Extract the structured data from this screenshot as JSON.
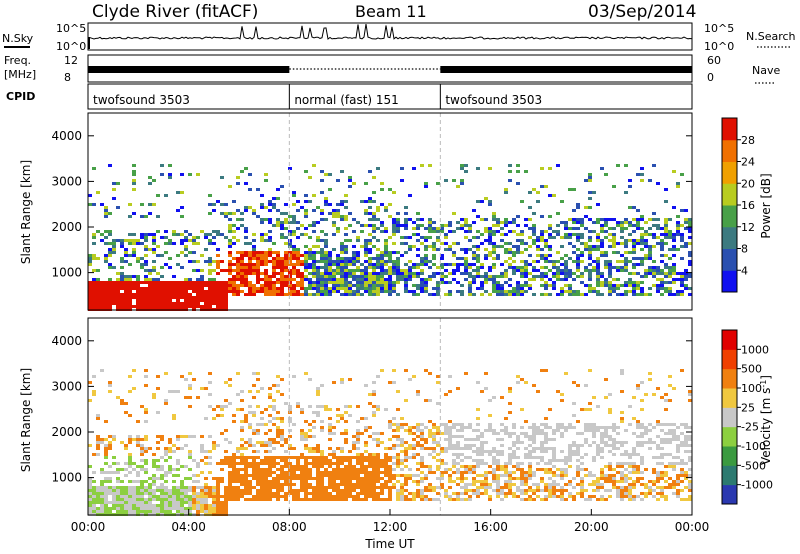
{
  "header": {
    "station": "Clyde River (fitACF)",
    "beam": "Beam 11",
    "date": "03/Sep/2014"
  },
  "top_panels": {
    "nsky_label": "N.Sky",
    "nsky_ticks": [
      "10^5",
      "10^0"
    ],
    "nsearch_label": "N.Search",
    "nsearch_ticks": [
      "10^5",
      "10^0"
    ],
    "freq_label": "Freq.",
    "freq_unit": "[MHz]",
    "freq_ticks": [
      "12",
      "8"
    ],
    "nave_label": "Nave",
    "nave_ticks": [
      "60",
      "0"
    ],
    "cpid_label": "CPID",
    "cpid_segments": [
      {
        "name": "twofsound",
        "id": "3503",
        "start_h": 0,
        "end_h": 8
      },
      {
        "name": "normal (fast)",
        "id": "151",
        "start_h": 8,
        "end_h": 14
      },
      {
        "name": "twofsound",
        "id": "3503",
        "start_h": 14,
        "end_h": 24
      }
    ]
  },
  "chart_data": [
    {
      "type": "heatmap",
      "panel": "power",
      "ylabel": "Slant Range [km]",
      "ylim": [
        180,
        4500
      ],
      "yticks": [
        "4000",
        "3000",
        "2000",
        "1000"
      ],
      "xlim_hours": [
        0,
        24
      ],
      "colorbar_label": "Power [dB]",
      "colorbar_ticks": [
        "28",
        "24",
        "20",
        "16",
        "12",
        "8",
        "4"
      ],
      "colorbar_colors": [
        "#1010f0",
        "#2a50b0",
        "#3c7a80",
        "#48a048",
        "#b8cc20",
        "#f0a000",
        "#f07000",
        "#e01000"
      ]
    },
    {
      "type": "heatmap",
      "panel": "velocity",
      "ylabel": "Slant Range [km]",
      "ylim": [
        180,
        4500
      ],
      "yticks": [
        "4000",
        "3000",
        "2000",
        "1000"
      ],
      "xlim_hours": [
        0,
        24
      ],
      "xticks": [
        "00:00",
        "04:00",
        "08:00",
        "12:00",
        "16:00",
        "20:00",
        "00:00"
      ],
      "xlabel": "Time UT",
      "colorbar_label": "Velocity [m s^-1]",
      "colorbar_ticks": [
        "1000",
        "500",
        "100",
        "25",
        "-25",
        "-100",
        "-500",
        "-1000"
      ],
      "colorbar_colors": [
        "#2a38b0",
        "#2c7a70",
        "#3a9a40",
        "#8ccf40",
        "#c8c8c8",
        "#f0c840",
        "#f08010",
        "#f04000",
        "#e00000"
      ]
    }
  ]
}
